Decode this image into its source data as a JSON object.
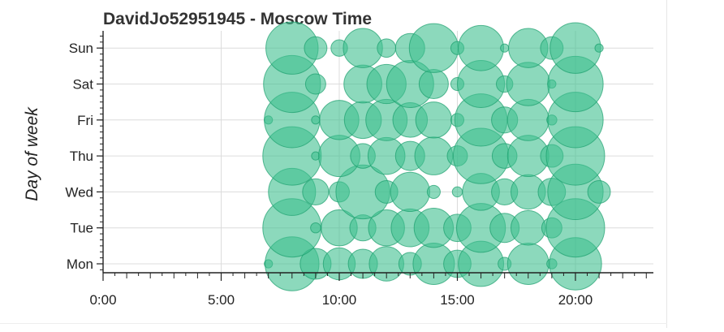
{
  "chart_data": {
    "type": "scatter",
    "title": "DavidJo52951945 - Moscow Time",
    "xlabel": "",
    "ylabel": "Day of week",
    "xlim": [
      0,
      23.3
    ],
    "x_ticks": [
      {
        "value": 0,
        "label": "0:00"
      },
      {
        "value": 5,
        "label": "5:00"
      },
      {
        "value": 10,
        "label": "10:00"
      },
      {
        "value": 15,
        "label": "15:00"
      },
      {
        "value": 20,
        "label": "20:00"
      }
    ],
    "categories": [
      "Mon",
      "Tue",
      "Wed",
      "Thu",
      "Fri",
      "Sat",
      "Sun"
    ],
    "grid": true,
    "marker_color": "#3fbf8f",
    "marker_edge_color": "#1a9e6c",
    "series": [
      {
        "day": "Mon",
        "points": [
          {
            "hour": 7,
            "size": 0.02
          },
          {
            "hour": 8,
            "size": 0.85
          },
          {
            "hour": 9,
            "size": 0.28
          },
          {
            "hour": 10,
            "size": 0.3
          },
          {
            "hour": 11,
            "size": 0.25
          },
          {
            "hour": 12,
            "size": 0.35
          },
          {
            "hour": 13,
            "size": 0.15
          },
          {
            "hour": 14,
            "size": 0.5
          },
          {
            "hour": 15,
            "size": 0.22
          },
          {
            "hour": 16,
            "size": 0.6
          },
          {
            "hour": 17,
            "size": 0.05
          },
          {
            "hour": 18,
            "size": 0.5
          },
          {
            "hour": 19,
            "size": 0.03
          },
          {
            "hour": 20,
            "size": 0.8
          }
        ]
      },
      {
        "day": "Tue",
        "points": [
          {
            "hour": 8,
            "size": 1.0
          },
          {
            "hour": 9,
            "size": 0.03
          },
          {
            "hour": 10,
            "size": 0.38
          },
          {
            "hour": 11,
            "size": 0.2
          },
          {
            "hour": 12,
            "size": 0.38
          },
          {
            "hour": 13,
            "size": 0.42
          },
          {
            "hour": 14,
            "size": 0.45
          },
          {
            "hour": 15,
            "size": 0.22
          },
          {
            "hour": 16,
            "size": 0.7
          },
          {
            "hour": 17,
            "size": 0.25
          },
          {
            "hour": 18,
            "size": 0.35
          },
          {
            "hour": 19,
            "size": 0.12
          },
          {
            "hour": 20,
            "size": 1.0
          }
        ]
      },
      {
        "day": "Wed",
        "points": [
          {
            "hour": 8,
            "size": 0.65
          },
          {
            "hour": 9,
            "size": 0.2
          },
          {
            "hour": 10,
            "size": 0.12
          },
          {
            "hour": 11,
            "size": 0.85
          },
          {
            "hour": 12,
            "size": 0.15
          },
          {
            "hour": 13,
            "size": 0.45
          },
          {
            "hour": 14,
            "size": 0.05
          },
          {
            "hour": 15,
            "size": 0.03
          },
          {
            "hour": 16,
            "size": 0.4
          },
          {
            "hour": 17,
            "size": 0.2
          },
          {
            "hour": 18,
            "size": 0.35
          },
          {
            "hour": 19,
            "size": 0.22
          },
          {
            "hour": 20,
            "size": 0.9
          },
          {
            "hour": 21,
            "size": 0.15
          }
        ]
      },
      {
        "day": "Thu",
        "points": [
          {
            "hour": 8,
            "size": 1.0
          },
          {
            "hour": 9,
            "size": 0.02
          },
          {
            "hour": 10,
            "size": 0.5
          },
          {
            "hour": 11,
            "size": 0.18
          },
          {
            "hour": 12,
            "size": 0.4
          },
          {
            "hour": 13,
            "size": 0.25
          },
          {
            "hour": 14,
            "size": 0.42
          },
          {
            "hour": 15,
            "size": 0.12
          },
          {
            "hour": 16,
            "size": 0.9
          },
          {
            "hour": 17,
            "size": 0.18
          },
          {
            "hour": 18,
            "size": 0.5
          },
          {
            "hour": 19,
            "size": 0.15
          },
          {
            "hour": 20,
            "size": 1.0
          }
        ]
      },
      {
        "day": "Fri",
        "points": [
          {
            "hour": 7,
            "size": 0.02
          },
          {
            "hour": 8,
            "size": 0.9
          },
          {
            "hour": 9,
            "size": 0.02
          },
          {
            "hour": 10,
            "size": 0.45
          },
          {
            "hour": 11,
            "size": 0.4
          },
          {
            "hour": 12,
            "size": 0.5
          },
          {
            "hour": 13,
            "size": 0.35
          },
          {
            "hour": 14,
            "size": 0.38
          },
          {
            "hour": 15,
            "size": 0.05
          },
          {
            "hour": 16,
            "size": 0.8
          },
          {
            "hour": 17,
            "size": 0.2
          },
          {
            "hour": 18,
            "size": 0.5
          },
          {
            "hour": 19,
            "size": 0.03
          },
          {
            "hour": 20,
            "size": 0.9
          }
        ]
      },
      {
        "day": "Sat",
        "points": [
          {
            "hour": 8,
            "size": 0.95
          },
          {
            "hour": 9,
            "size": 0.12
          },
          {
            "hour": 11,
            "size": 0.42
          },
          {
            "hour": 12,
            "size": 0.45
          },
          {
            "hour": 13,
            "size": 0.65
          },
          {
            "hour": 14,
            "size": 0.25
          },
          {
            "hour": 15,
            "size": 0.05
          },
          {
            "hour": 16,
            "size": 0.65
          },
          {
            "hour": 17,
            "size": 0.08
          },
          {
            "hour": 18,
            "size": 0.55
          },
          {
            "hour": 19,
            "size": 0.02
          },
          {
            "hour": 20,
            "size": 0.9
          }
        ]
      },
      {
        "day": "Sun",
        "points": [
          {
            "hour": 8,
            "size": 0.8
          },
          {
            "hour": 9,
            "size": 0.15
          },
          {
            "hour": 10,
            "size": 0.08
          },
          {
            "hour": 11,
            "size": 0.45
          },
          {
            "hour": 12,
            "size": 0.1
          },
          {
            "hour": 13,
            "size": 0.25
          },
          {
            "hour": 14,
            "size": 0.7
          },
          {
            "hour": 15,
            "size": 0.05
          },
          {
            "hour": 16,
            "size": 0.6
          },
          {
            "hour": 17,
            "size": 0.02
          },
          {
            "hour": 18,
            "size": 0.45
          },
          {
            "hour": 19,
            "size": 0.15
          },
          {
            "hour": 20,
            "size": 0.75
          },
          {
            "hour": 21,
            "size": 0.02
          }
        ]
      }
    ]
  }
}
